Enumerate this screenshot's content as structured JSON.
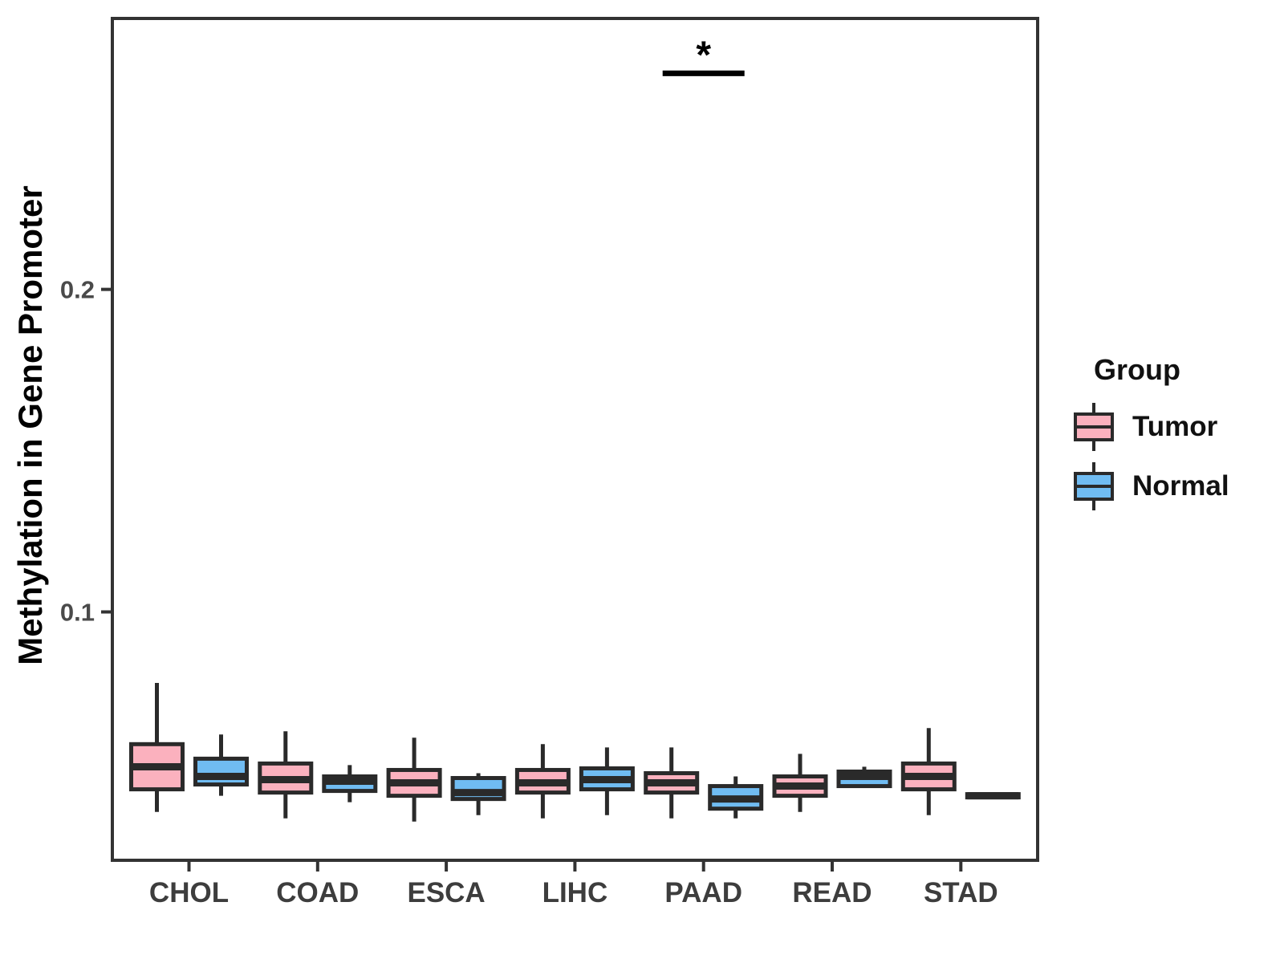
{
  "figure": {
    "y_axis_title": "Methylation in Gene Promoter",
    "legend": {
      "title": "Group",
      "entries": [
        {
          "label": "Tumor",
          "color": "#FBB1BE"
        },
        {
          "label": "Normal",
          "color": "#70BCF2"
        }
      ]
    }
  },
  "chart_data": {
    "type": "boxplot",
    "title": "",
    "xlabel": "",
    "ylabel": "Methylation in Gene Promoter",
    "categories": [
      "CHOL",
      "COAD",
      "ESCA",
      "LIHC",
      "PAAD",
      "READ",
      "STAD"
    ],
    "ylim": [
      0.023,
      0.284
    ],
    "yticks": [
      0.1,
      0.2
    ],
    "ytick_labels": [
      "0.1",
      "0.2"
    ],
    "grid": false,
    "legend_position": "right",
    "series": [
      {
        "name": "Tumor",
        "color": "#FBB1BE",
        "stats": [
          {
            "category": "CHOL",
            "low": 0.038,
            "q1": 0.045,
            "median": 0.052,
            "q3": 0.059,
            "high": 0.078
          },
          {
            "category": "COAD",
            "low": 0.036,
            "q1": 0.044,
            "median": 0.048,
            "q3": 0.053,
            "high": 0.063
          },
          {
            "category": "ESCA",
            "low": 0.035,
            "q1": 0.043,
            "median": 0.047,
            "q3": 0.051,
            "high": 0.061
          },
          {
            "category": "LIHC",
            "low": 0.036,
            "q1": 0.044,
            "median": 0.047,
            "q3": 0.051,
            "high": 0.059
          },
          {
            "category": "PAAD",
            "low": 0.036,
            "q1": 0.044,
            "median": 0.047,
            "q3": 0.05,
            "high": 0.058
          },
          {
            "category": "READ",
            "low": 0.038,
            "q1": 0.043,
            "median": 0.046,
            "q3": 0.049,
            "high": 0.056
          },
          {
            "category": "STAD",
            "low": 0.037,
            "q1": 0.045,
            "median": 0.049,
            "q3": 0.053,
            "high": 0.064
          }
        ]
      },
      {
        "name": "Normal",
        "color": "#70BCF2",
        "stats": [
          {
            "category": "CHOL",
            "low": 0.043,
            "q1": 0.0465,
            "median": 0.049,
            "q3": 0.0545,
            "high": 0.062
          },
          {
            "category": "COAD",
            "low": 0.041,
            "q1": 0.0445,
            "median": 0.0475,
            "q3": 0.049,
            "high": 0.0525
          },
          {
            "category": "ESCA",
            "low": 0.037,
            "q1": 0.042,
            "median": 0.044,
            "q3": 0.0485,
            "high": 0.05
          },
          {
            "category": "LIHC",
            "low": 0.037,
            "q1": 0.045,
            "median": 0.048,
            "q3": 0.0515,
            "high": 0.058
          },
          {
            "category": "PAAD",
            "low": 0.036,
            "q1": 0.039,
            "median": 0.042,
            "q3": 0.046,
            "high": 0.049
          },
          {
            "category": "READ",
            "low": 0.0455,
            "q1": 0.046,
            "median": 0.049,
            "q3": 0.0505,
            "high": 0.052
          },
          {
            "category": "STAD",
            "low": 0.042,
            "q1": 0.0425,
            "median": 0.043,
            "q3": 0.0435,
            "high": 0.044
          }
        ]
      }
    ],
    "annotations": [
      {
        "type": "significance",
        "category": "PAAD",
        "label": "*",
        "y": 0.267
      }
    ]
  }
}
